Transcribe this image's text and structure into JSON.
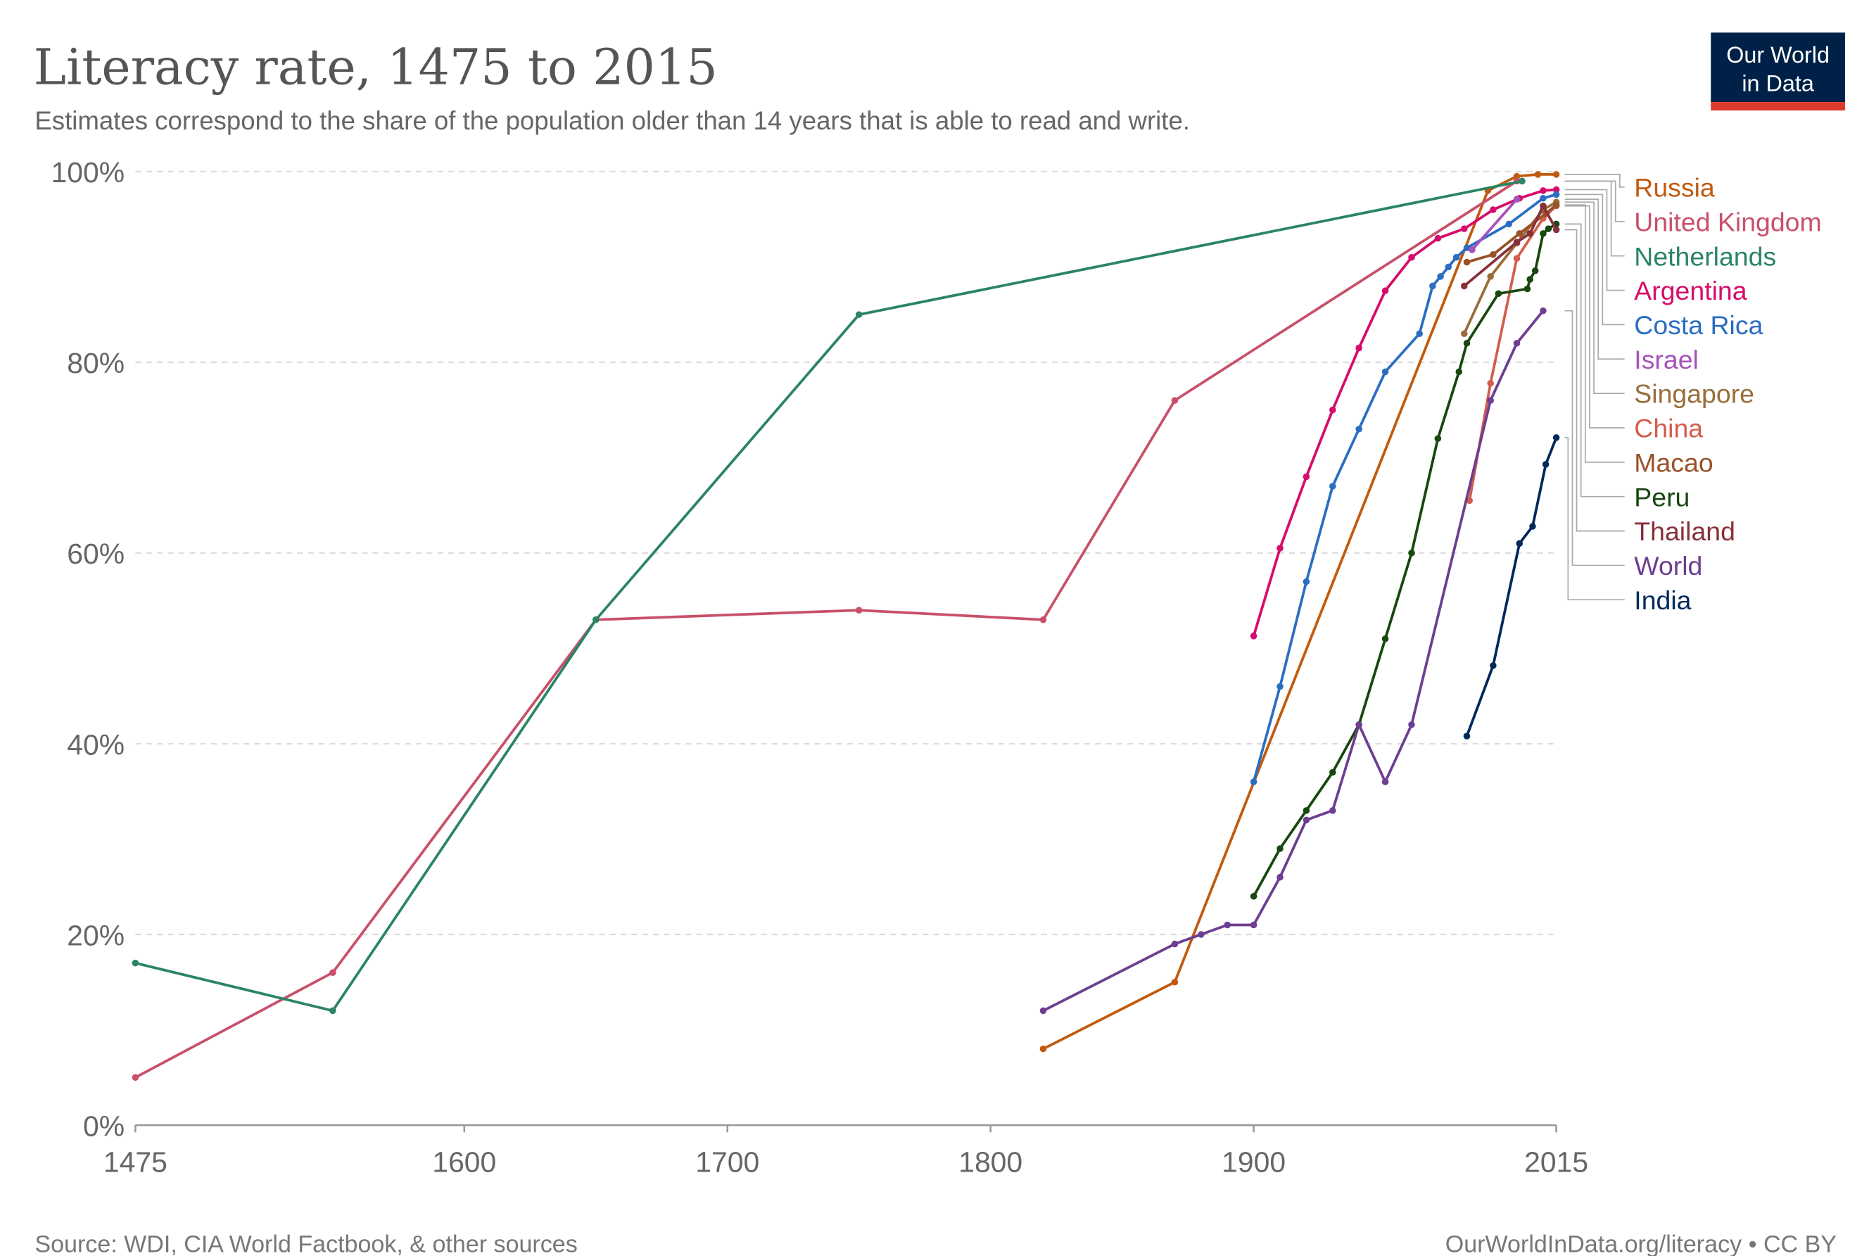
{
  "header": {
    "title": "Literacy rate, 1475 to 2015",
    "subtitle": "Estimates correspond to the share of the population older than 14 years that is able to read and write.",
    "logo_line1": "Our World",
    "logo_line2": "in Data",
    "logo_bg": "#002147",
    "logo_accent": "#DC3A2A"
  },
  "footer": {
    "source": "Source: WDI, CIA World Factbook, & other sources",
    "license": "OurWorldInData.org/literacy • CC BY"
  },
  "chart_data": {
    "type": "line",
    "title": "Literacy rate, 1475 to 2015",
    "xlim": [
      1475,
      2015
    ],
    "ylim": [
      0,
      100
    ],
    "x_ticks": [
      "1475",
      "1600",
      "1700",
      "1800",
      "1900",
      "2015"
    ],
    "x_tick_values": [
      1475,
      1600,
      1700,
      1800,
      1900,
      2015
    ],
    "y_ticks": [
      "0%",
      "20%",
      "40%",
      "60%",
      "80%",
      "100%"
    ],
    "y_tick_values": [
      0,
      20,
      40,
      60,
      80,
      100
    ],
    "grid": "horizontal dashed",
    "legend_placement": "right",
    "series": [
      {
        "name": "Russia",
        "color": "#C15A0E",
        "points": [
          [
            1820,
            8
          ],
          [
            1870,
            15
          ],
          [
            1989,
            98
          ],
          [
            2000,
            99.5
          ],
          [
            2008,
            99.7
          ],
          [
            2015,
            99.7
          ]
        ]
      },
      {
        "name": "United Kingdom",
        "color": "#C9506A",
        "points": [
          [
            1475,
            5
          ],
          [
            1550,
            16
          ],
          [
            1650,
            53
          ],
          [
            1750,
            54
          ],
          [
            1820,
            53
          ],
          [
            1870,
            76
          ],
          [
            2000,
            99
          ]
        ]
      },
      {
        "name": "Netherlands",
        "color": "#2A8465",
        "points": [
          [
            1475,
            17
          ],
          [
            1550,
            12
          ],
          [
            1650,
            53
          ],
          [
            1750,
            85
          ],
          [
            2002,
            99
          ]
        ]
      },
      {
        "name": "Argentina",
        "color": "#D60C6C",
        "points": [
          [
            1900,
            51.3
          ],
          [
            1910,
            60.5
          ],
          [
            1920,
            68
          ],
          [
            1930,
            75
          ],
          [
            1940,
            81.5
          ],
          [
            1950,
            87.5
          ],
          [
            1960,
            91
          ],
          [
            1970,
            93
          ],
          [
            1980,
            94
          ],
          [
            1991,
            96
          ],
          [
            2001,
            97.2
          ],
          [
            2010,
            98
          ],
          [
            2015,
            98.1
          ]
        ]
      },
      {
        "name": "Costa Rica",
        "color": "#2A6EC2",
        "points": [
          [
            1900,
            36
          ],
          [
            1910,
            46
          ],
          [
            1920,
            57
          ],
          [
            1930,
            67
          ],
          [
            1940,
            73
          ],
          [
            1950,
            79
          ],
          [
            1963,
            83
          ],
          [
            1968,
            88
          ],
          [
            1971,
            89
          ],
          [
            1974,
            90
          ],
          [
            1977,
            91
          ],
          [
            1981,
            92
          ],
          [
            1997,
            94.5
          ],
          [
            2010,
            97.2
          ],
          [
            2015,
            97.6
          ]
        ]
      },
      {
        "name": "Israel",
        "color": "#A652BA",
        "points": [
          [
            1983,
            91.8
          ],
          [
            2000,
            97.1
          ]
        ]
      },
      {
        "name": "Singapore",
        "color": "#996D39",
        "points": [
          [
            1980,
            83
          ],
          [
            1990,
            89
          ],
          [
            2000,
            92.5
          ],
          [
            2010,
            96
          ],
          [
            2015,
            96.8
          ]
        ]
      },
      {
        "name": "China",
        "color": "#D35D4B",
        "points": [
          [
            1982,
            65.5
          ],
          [
            1990,
            77.8
          ],
          [
            2000,
            90.9
          ],
          [
            2010,
            95.1
          ],
          [
            2015,
            96.4
          ]
        ]
      },
      {
        "name": "Macao",
        "color": "#9A5129",
        "points": [
          [
            1981,
            90.5
          ],
          [
            1991,
            91.3
          ],
          [
            2001,
            93.5
          ],
          [
            2011,
            95.6
          ],
          [
            2015,
            96.5
          ]
        ]
      },
      {
        "name": "Peru",
        "color": "#18470F",
        "points": [
          [
            1900,
            24
          ],
          [
            1910,
            29
          ],
          [
            1920,
            33
          ],
          [
            1930,
            37
          ],
          [
            1940,
            42
          ],
          [
            1950,
            51
          ],
          [
            1960,
            60
          ],
          [
            1970,
            72
          ],
          [
            1978,
            79
          ],
          [
            1981,
            82
          ],
          [
            1993,
            87.2
          ],
          [
            2004,
            87.7
          ],
          [
            2005,
            88.7
          ],
          [
            2007,
            89.6
          ],
          [
            2010,
            93.5
          ],
          [
            2012,
            94
          ],
          [
            2015,
            94.5
          ]
        ]
      },
      {
        "name": "Thailand",
        "color": "#883039",
        "points": [
          [
            1980,
            88
          ],
          [
            2000,
            92.6
          ],
          [
            2005,
            93.5
          ],
          [
            2010,
            96.4
          ],
          [
            2015,
            93.9
          ]
        ]
      },
      {
        "name": "World",
        "color": "#6D3E91",
        "points": [
          [
            1820,
            12
          ],
          [
            1870,
            19
          ],
          [
            1880,
            20
          ],
          [
            1890,
            21
          ],
          [
            1900,
            21
          ],
          [
            1910,
            26
          ],
          [
            1920,
            32
          ],
          [
            1930,
            33
          ],
          [
            1940,
            42
          ],
          [
            1950,
            36
          ],
          [
            1960,
            42
          ],
          [
            1990,
            76
          ],
          [
            2000,
            82
          ],
          [
            2010,
            85.4
          ]
        ]
      },
      {
        "name": "India",
        "color": "#00295B",
        "points": [
          [
            1981,
            40.8
          ],
          [
            1991,
            48.2
          ],
          [
            2001,
            61
          ],
          [
            2006,
            62.8
          ],
          [
            2011,
            69.3
          ],
          [
            2015,
            72.1
          ]
        ]
      }
    ]
  }
}
